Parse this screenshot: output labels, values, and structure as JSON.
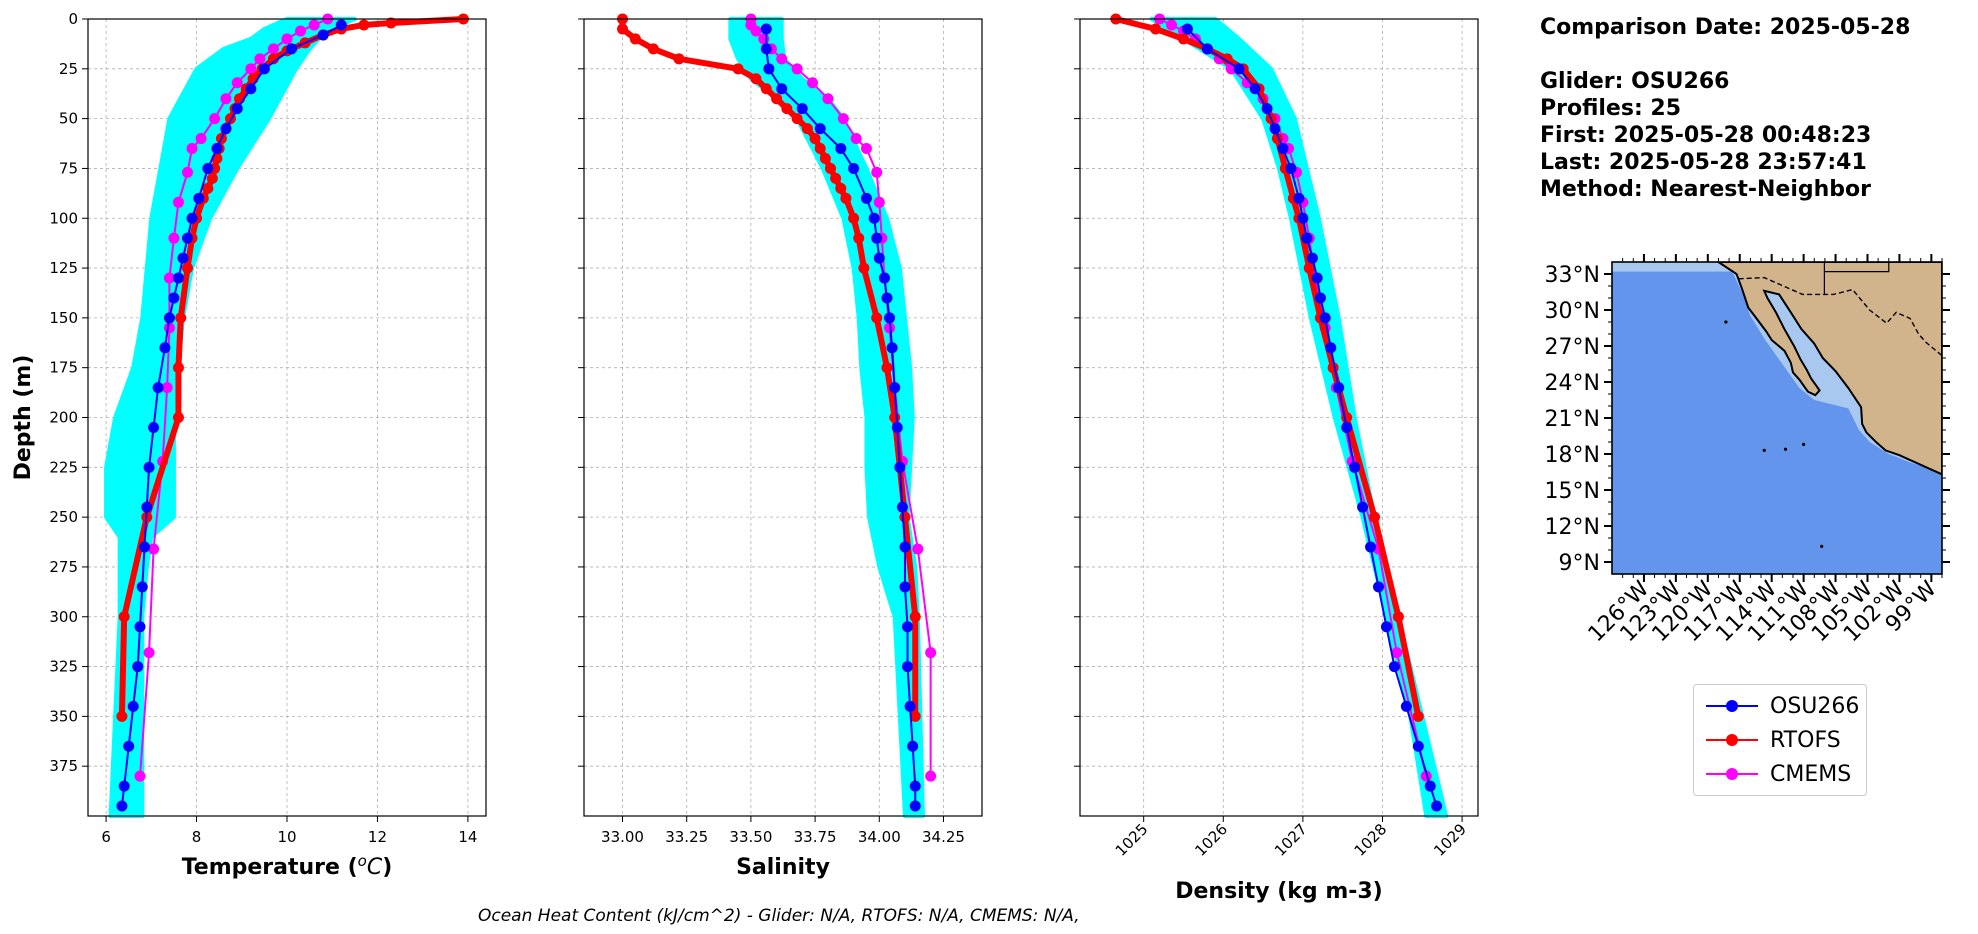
{
  "info": {
    "comparison_date": "Comparison Date: 2025-05-28",
    "glider": "Glider: OSU266",
    "profiles": "Profiles: 25",
    "first": "First: 2025-05-28 00:48:23",
    "last": "Last: 2025-05-28 23:57:41",
    "method": "Method: Nearest-Neighbor"
  },
  "footer": "Ocean Heat Content (kJ/cm^2) - Glider: N/A,  RTOFS: N/A,  CMEMS: N/A,",
  "colors": {
    "glider": "#0000ff",
    "rtofs": "#ff0000",
    "cmems": "#ff00ff",
    "envelope": "#00ffff",
    "ocean": "#6495ed",
    "land": "#d2b48c",
    "lake": "#a8c8f0"
  },
  "legend": [
    {
      "label": "OSU266",
      "color": "#0000ff"
    },
    {
      "label": "RTOFS",
      "color": "#ff0000"
    },
    {
      "label": "CMEMS",
      "color": "#ff00ff"
    }
  ],
  "chart_data": [
    {
      "type": "line",
      "xlabel": "Temperature ($^{o}C$)",
      "ylabel": "Depth (m)",
      "xlim": [
        5.6,
        14.4
      ],
      "ylim": [
        400,
        0
      ],
      "xticks": [
        6,
        8,
        10,
        12,
        14
      ],
      "yticks": [
        0,
        25,
        50,
        75,
        100,
        125,
        150,
        175,
        200,
        225,
        250,
        275,
        300,
        325,
        350,
        375
      ],
      "grid": true,
      "envelope": {
        "name": "Glider profiles",
        "depth": [
          0,
          5,
          10,
          15,
          25,
          50,
          75,
          100,
          125,
          150,
          175,
          200,
          225,
          250,
          260,
          275,
          300,
          350,
          400
        ],
        "min": [
          10.0,
          9.5,
          9.2,
          8.6,
          8.0,
          7.4,
          7.2,
          7.0,
          6.9,
          6.8,
          6.6,
          6.2,
          6.0,
          6.0,
          6.3,
          6.3,
          6.3,
          6.2,
          6.1
        ],
        "max": [
          11.5,
          11.0,
          10.7,
          10.5,
          10.2,
          9.6,
          8.9,
          8.3,
          7.9,
          7.7,
          7.6,
          7.5,
          7.5,
          7.5,
          7.0,
          6.9,
          6.8,
          6.8,
          6.8
        ]
      },
      "series": [
        {
          "name": "OSU266",
          "depth": [
            3,
            8,
            15,
            25,
            35,
            45,
            55,
            65,
            75,
            90,
            100,
            110,
            120,
            130,
            140,
            150,
            165,
            185,
            205,
            225,
            245,
            265,
            285,
            305,
            325,
            345,
            365,
            385,
            395
          ],
          "values": [
            11.2,
            10.8,
            10.1,
            9.5,
            9.2,
            8.9,
            8.65,
            8.45,
            8.25,
            8.05,
            7.9,
            7.8,
            7.7,
            7.6,
            7.5,
            7.4,
            7.3,
            7.15,
            7.05,
            6.95,
            6.9,
            6.85,
            6.8,
            6.75,
            6.7,
            6.6,
            6.5,
            6.4,
            6.35
          ]
        },
        {
          "name": "RTOFS",
          "depth": [
            0,
            2,
            3,
            5,
            8,
            12,
            16,
            20,
            25,
            30,
            35,
            40,
            45,
            50,
            55,
            60,
            65,
            70,
            75,
            80,
            85,
            90,
            100,
            110,
            125,
            150,
            175,
            200,
            250,
            300,
            350
          ],
          "values": [
            13.9,
            12.3,
            11.7,
            11.2,
            10.8,
            10.4,
            10.0,
            9.7,
            9.45,
            9.25,
            9.1,
            8.95,
            8.85,
            8.75,
            8.65,
            8.55,
            8.5,
            8.45,
            8.4,
            8.35,
            8.25,
            8.15,
            8.0,
            7.9,
            7.8,
            7.65,
            7.6,
            7.6,
            6.9,
            6.4,
            6.35
          ]
        },
        {
          "name": "CMEMS",
          "depth": [
            0,
            3,
            6,
            10,
            15,
            20,
            25,
            32,
            40,
            50,
            60,
            65,
            77,
            92,
            110,
            130,
            155,
            185,
            222,
            266,
            318,
            380
          ],
          "values": [
            10.9,
            10.6,
            10.3,
            10.0,
            9.7,
            9.4,
            9.2,
            8.9,
            8.65,
            8.4,
            8.1,
            7.9,
            7.8,
            7.6,
            7.5,
            7.4,
            7.4,
            7.35,
            7.25,
            7.05,
            6.95,
            6.75
          ]
        }
      ]
    },
    {
      "type": "line",
      "xlabel": "Salinity",
      "ylabel": "",
      "xlim": [
        32.85,
        34.4
      ],
      "ylim": [
        400,
        0
      ],
      "xticks": [
        33.0,
        33.25,
        33.5,
        33.75,
        34.0,
        34.25
      ],
      "xticklabels": [
        "33.00",
        "33.25",
        "33.50",
        "33.75",
        "34.00",
        "34.25"
      ],
      "yticks": [
        0,
        25,
        50,
        75,
        100,
        125,
        150,
        175,
        200,
        225,
        250,
        275,
        300,
        325,
        350,
        375
      ],
      "grid": true,
      "envelope": {
        "name": "Glider profiles",
        "depth": [
          0,
          10,
          20,
          30,
          40,
          50,
          75,
          100,
          125,
          150,
          175,
          200,
          225,
          250,
          275,
          300,
          350,
          400
        ],
        "min": [
          33.42,
          33.42,
          33.45,
          33.5,
          33.6,
          33.68,
          33.78,
          33.86,
          33.9,
          33.92,
          33.93,
          33.95,
          33.95,
          33.96,
          34.0,
          34.06,
          34.08,
          34.1
        ],
        "max": [
          33.62,
          33.62,
          33.63,
          33.7,
          33.8,
          33.86,
          33.95,
          34.03,
          34.08,
          34.1,
          34.12,
          34.13,
          34.12,
          34.11,
          34.14,
          34.15,
          34.16,
          34.17
        ]
      },
      "series": [
        {
          "name": "OSU266",
          "depth": [
            5,
            15,
            25,
            35,
            45,
            55,
            65,
            75,
            90,
            100,
            110,
            120,
            130,
            140,
            150,
            165,
            185,
            205,
            225,
            245,
            265,
            285,
            305,
            325,
            345,
            365,
            385,
            395
          ],
          "values": [
            33.56,
            33.56,
            33.57,
            33.62,
            33.7,
            33.77,
            33.85,
            33.9,
            33.95,
            33.98,
            33.99,
            34.0,
            34.02,
            34.03,
            34.04,
            34.05,
            34.06,
            34.07,
            34.08,
            34.09,
            34.1,
            34.1,
            34.11,
            34.11,
            34.12,
            34.13,
            34.14,
            34.14
          ]
        },
        {
          "name": "RTOFS",
          "depth": [
            0,
            5,
            10,
            15,
            20,
            25,
            30,
            35,
            40,
            45,
            50,
            55,
            60,
            65,
            70,
            75,
            80,
            85,
            90,
            100,
            110,
            125,
            150,
            175,
            200,
            250,
            300,
            350
          ],
          "values": [
            33.0,
            33.0,
            33.05,
            33.12,
            33.22,
            33.45,
            33.52,
            33.56,
            33.6,
            33.64,
            33.68,
            33.72,
            33.75,
            33.77,
            33.79,
            33.81,
            33.83,
            33.85,
            33.87,
            33.9,
            33.92,
            33.94,
            33.99,
            34.03,
            34.06,
            34.1,
            34.14,
            34.14
          ]
        },
        {
          "name": "CMEMS",
          "depth": [
            0,
            3,
            6,
            10,
            15,
            20,
            25,
            32,
            40,
            50,
            60,
            65,
            77,
            92,
            110,
            130,
            155,
            185,
            222,
            266,
            318,
            380
          ],
          "values": [
            33.5,
            33.5,
            33.52,
            33.55,
            33.58,
            33.62,
            33.68,
            33.74,
            33.8,
            33.86,
            33.91,
            33.95,
            33.99,
            34.0,
            34.01,
            34.02,
            34.04,
            34.06,
            34.09,
            34.15,
            34.2,
            34.2
          ]
        }
      ]
    },
    {
      "type": "line",
      "xlabel": "Density (kg m-3)",
      "ylabel": "",
      "xlim": [
        1024.2,
        1029.2
      ],
      "ylim": [
        400,
        0
      ],
      "xticks": [
        1025,
        1026,
        1027,
        1028,
        1029
      ],
      "yticks": [
        0,
        25,
        50,
        75,
        100,
        125,
        150,
        175,
        200,
        225,
        250,
        275,
        300,
        325,
        350,
        375
      ],
      "grid": true,
      "envelope": {
        "name": "Glider profiles",
        "depth": [
          0,
          10,
          25,
          50,
          75,
          100,
          150,
          200,
          250,
          300,
          350,
          400
        ],
        "min": [
          1025.1,
          1025.5,
          1026.1,
          1026.5,
          1026.7,
          1026.85,
          1027.1,
          1027.4,
          1027.75,
          1028.05,
          1028.35,
          1028.55
        ],
        "max": [
          1025.9,
          1026.2,
          1026.6,
          1026.9,
          1027.05,
          1027.2,
          1027.45,
          1027.65,
          1027.9,
          1028.2,
          1028.5,
          1028.8
        ]
      },
      "series": [
        {
          "name": "OSU266",
          "depth": [
            5,
            15,
            25,
            35,
            45,
            55,
            65,
            75,
            90,
            100,
            110,
            120,
            130,
            140,
            150,
            165,
            185,
            205,
            225,
            245,
            265,
            285,
            305,
            325,
            345,
            365,
            385,
            395
          ],
          "values": [
            1025.55,
            1025.8,
            1026.2,
            1026.4,
            1026.55,
            1026.65,
            1026.75,
            1026.85,
            1026.95,
            1027.0,
            1027.05,
            1027.12,
            1027.18,
            1027.22,
            1027.28,
            1027.35,
            1027.45,
            1027.55,
            1027.65,
            1027.75,
            1027.85,
            1027.95,
            1028.05,
            1028.15,
            1028.3,
            1028.45,
            1028.6,
            1028.68
          ]
        },
        {
          "name": "RTOFS",
          "depth": [
            0,
            5,
            10,
            15,
            20,
            25,
            35,
            50,
            60,
            75,
            90,
            100,
            125,
            150,
            175,
            200,
            250,
            300,
            350
          ],
          "values": [
            1024.65,
            1025.15,
            1025.5,
            1025.8,
            1026.05,
            1026.25,
            1026.45,
            1026.6,
            1026.68,
            1026.78,
            1026.88,
            1026.95,
            1027.08,
            1027.22,
            1027.38,
            1027.55,
            1027.9,
            1028.2,
            1028.45
          ]
        },
        {
          "name": "CMEMS",
          "depth": [
            0,
            3,
            6,
            10,
            15,
            20,
            25,
            32,
            40,
            50,
            60,
            65,
            77,
            92,
            110,
            130,
            155,
            185,
            222,
            266,
            318,
            380
          ],
          "values": [
            1025.2,
            1025.35,
            1025.5,
            1025.65,
            1025.8,
            1025.95,
            1026.1,
            1026.3,
            1026.5,
            1026.65,
            1026.75,
            1026.82,
            1026.92,
            1027.0,
            1027.08,
            1027.15,
            1027.28,
            1027.42,
            1027.62,
            1027.95,
            1028.18,
            1028.55
          ]
        }
      ]
    }
  ],
  "map": {
    "lon_ticks": [
      -126,
      -123,
      -120,
      -117,
      -114,
      -111,
      -108,
      -105,
      -102,
      -99
    ],
    "lon_tick_labels": [
      "126°W",
      "123°W",
      "120°W",
      "117°W",
      "114°W",
      "111°W",
      "108°W",
      "105°W",
      "102°W",
      "99°W"
    ],
    "lat_ticks": [
      9,
      12,
      15,
      18,
      21,
      24,
      27,
      30,
      33
    ],
    "lat_tick_labels": [
      "9°N",
      "12°N",
      "15°N",
      "18°N",
      "21°N",
      "24°N",
      "27°N",
      "30°N",
      "33°N"
    ],
    "lon_range": [
      -129,
      -98
    ],
    "lat_range": [
      8,
      34
    ]
  }
}
